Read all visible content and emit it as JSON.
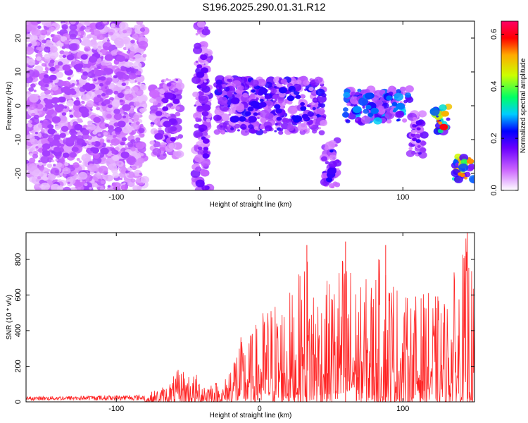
{
  "title": "S196.2025.290.01.31.R12",
  "chart_data": [
    {
      "type": "heatmap",
      "xlabel": "Height of straight line (km)",
      "ylabel": "Frequency (Hz)",
      "xlim": [
        -163,
        150
      ],
      "ylim": [
        -25,
        25
      ],
      "xticks": [
        -100,
        0,
        100
      ],
      "yticks": [
        -20,
        -10,
        0,
        10,
        20
      ],
      "colorbar": {
        "label": "Normalized spectral amplitude",
        "range": [
          0,
          0.65
        ],
        "ticks": [
          "0.0",
          "0.2",
          "0.4",
          "0.6"
        ],
        "tick_values": [
          0,
          0.2,
          0.4,
          0.6
        ]
      },
      "features": [
        {
          "x_range": [
            -163,
            -80
          ],
          "y_range": [
            -25,
            25
          ],
          "peak": 0.12
        },
        {
          "x_range": [
            -75,
            -55
          ],
          "y_range": [
            -15,
            8
          ],
          "peak": 0.16
        },
        {
          "x_range": [
            -45,
            -35
          ],
          "y_range": [
            -25,
            25
          ],
          "peak": 0.18
        },
        {
          "x_range": [
            -30,
            45
          ],
          "y_range": [
            -8,
            8
          ],
          "peak": 0.22
        },
        {
          "x_range": [
            45,
            55
          ],
          "y_range": [
            -25,
            -10
          ],
          "peak": 0.22
        },
        {
          "x_range": [
            60,
            105
          ],
          "y_range": [
            -5,
            5
          ],
          "peak": 0.3
        },
        {
          "x_range": [
            105,
            115
          ],
          "y_range": [
            -15,
            -2
          ],
          "peak": 0.2
        },
        {
          "x_range": [
            122,
            132
          ],
          "y_range": [
            -8,
            0
          ],
          "peak": 0.6
        },
        {
          "x_range": [
            135,
            150
          ],
          "y_range": [
            -22,
            -15
          ],
          "peak": 0.55
        }
      ]
    },
    {
      "type": "line",
      "xlabel": "Height of straight line (km)",
      "ylabel": "SNR (10 * v/v)",
      "xlim": [
        -163,
        150
      ],
      "ylim": [
        0,
        950
      ],
      "xticks": [
        -100,
        0,
        100
      ],
      "yticks": [
        0,
        200,
        400,
        600,
        800
      ],
      "color": "#ff2222",
      "envelope": [
        {
          "x": -163,
          "y": 30
        },
        {
          "x": -80,
          "y": 40
        },
        {
          "x": -65,
          "y": 100
        },
        {
          "x": -55,
          "y": 200
        },
        {
          "x": -45,
          "y": 160
        },
        {
          "x": -35,
          "y": 140
        },
        {
          "x": -25,
          "y": 100
        },
        {
          "x": -18,
          "y": 350
        },
        {
          "x": -5,
          "y": 400
        },
        {
          "x": 5,
          "y": 580
        },
        {
          "x": 15,
          "y": 620
        },
        {
          "x": 25,
          "y": 650
        },
        {
          "x": 33,
          "y": 880
        },
        {
          "x": 45,
          "y": 650
        },
        {
          "x": 60,
          "y": 900
        },
        {
          "x": 70,
          "y": 650
        },
        {
          "x": 88,
          "y": 880
        },
        {
          "x": 100,
          "y": 600
        },
        {
          "x": 115,
          "y": 620
        },
        {
          "x": 130,
          "y": 600
        },
        {
          "x": 145,
          "y": 950
        },
        {
          "x": 150,
          "y": 650
        }
      ],
      "highlights": [
        {
          "x": 33,
          "y": 880
        },
        {
          "x": 60,
          "y": 900
        },
        {
          "x": 88,
          "y": 880
        },
        {
          "x": 145,
          "y": 950
        }
      ]
    }
  ]
}
